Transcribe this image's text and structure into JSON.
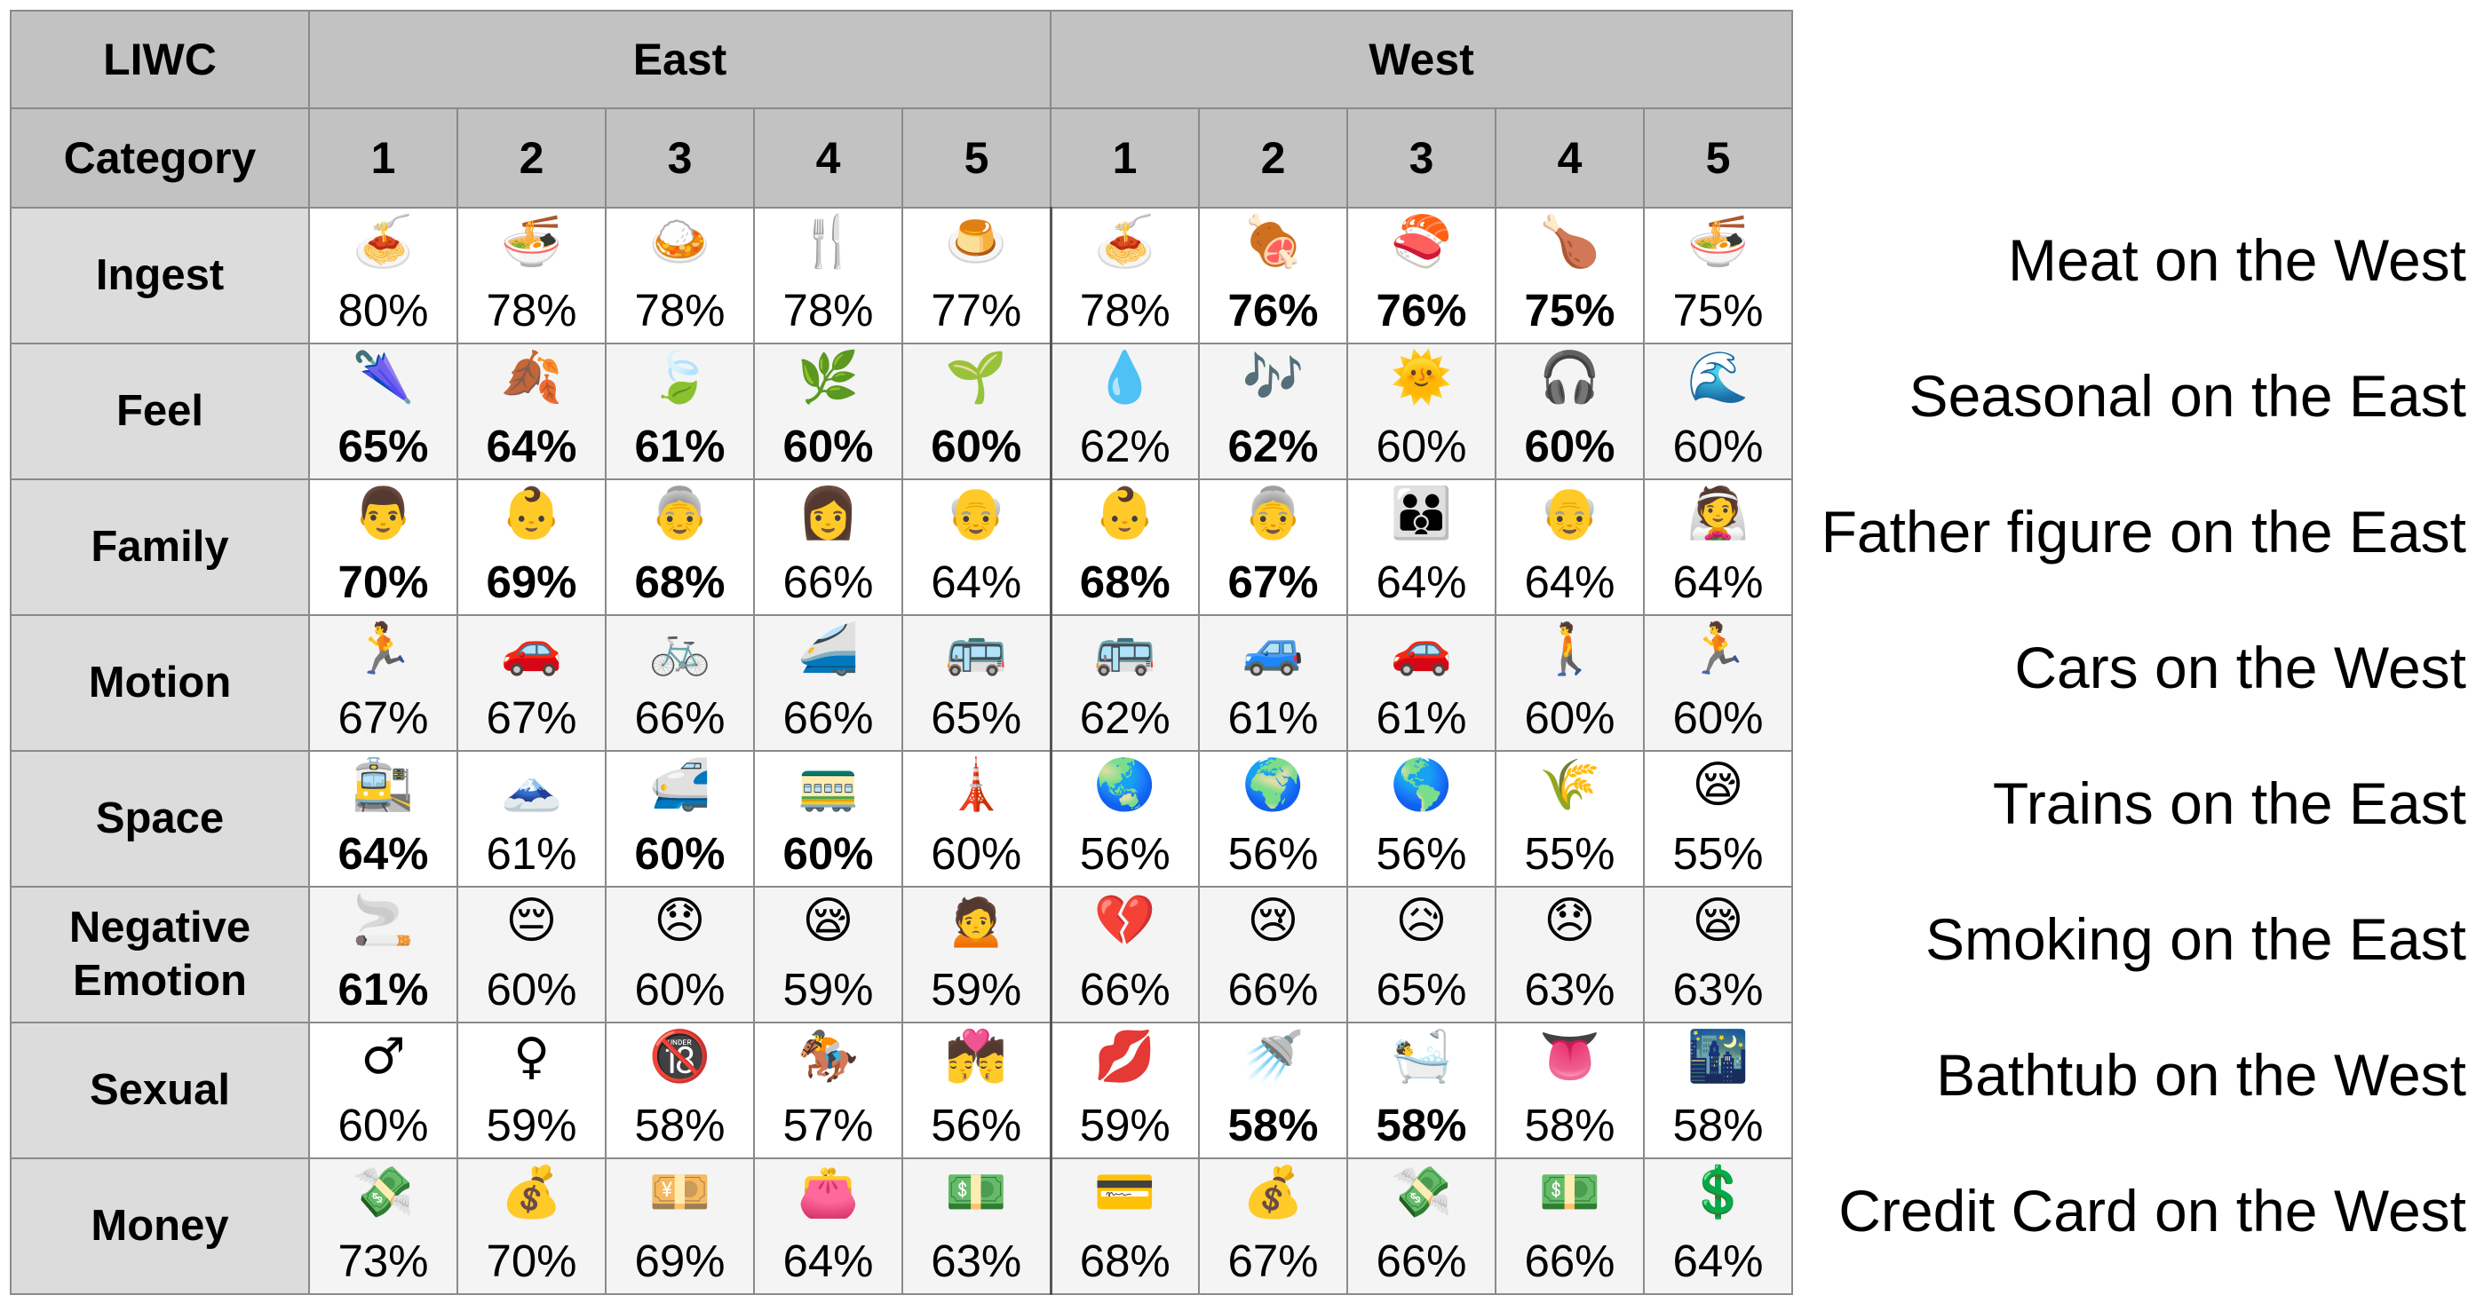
{
  "table": {
    "header_top": {
      "left": "LIWC",
      "groups": [
        "East",
        "West"
      ]
    },
    "header_sub": {
      "left": "Category",
      "ranks": [
        "1",
        "2",
        "3",
        "4",
        "5"
      ]
    }
  },
  "chart_data": {
    "type": "table",
    "groups": [
      "East",
      "West"
    ],
    "ranks": [
      "1",
      "2",
      "3",
      "4",
      "5"
    ],
    "rows": [
      {
        "category": "Ingest",
        "note": "Meat on the West",
        "cells": [
          {
            "emoji": "spaghetti",
            "glyph": "🍝",
            "value": "80%",
            "bold": false
          },
          {
            "emoji": "steaming-bowl",
            "glyph": "🍜",
            "value": "78%",
            "bold": false
          },
          {
            "emoji": "curry-rice",
            "glyph": "🍛",
            "value": "78%",
            "bold": false
          },
          {
            "emoji": "fork-and-knife",
            "glyph": "🍴",
            "value": "78%",
            "bold": false
          },
          {
            "emoji": "custard",
            "glyph": "🍮",
            "value": "77%",
            "bold": false
          },
          {
            "emoji": "spaghetti",
            "glyph": "🍝",
            "value": "78%",
            "bold": false
          },
          {
            "emoji": "meat-on-bone",
            "glyph": "🍖",
            "value": "76%",
            "bold": true
          },
          {
            "emoji": "sushi",
            "glyph": "🍣",
            "value": "76%",
            "bold": true
          },
          {
            "emoji": "poultry-leg",
            "glyph": "🍗",
            "value": "75%",
            "bold": true
          },
          {
            "emoji": "steaming-bowl",
            "glyph": "🍜",
            "value": "75%",
            "bold": false
          }
        ]
      },
      {
        "category": "Feel",
        "note": "Seasonal on the East",
        "cells": [
          {
            "emoji": "closed-umbrella",
            "glyph": "🌂",
            "value": "65%",
            "bold": true
          },
          {
            "emoji": "fallen-leaf",
            "glyph": "🍂",
            "value": "64%",
            "bold": true
          },
          {
            "emoji": "leaf-fluttering",
            "glyph": "🍃",
            "value": "61%",
            "bold": true
          },
          {
            "emoji": "herb",
            "glyph": "🌿",
            "value": "60%",
            "bold": true
          },
          {
            "emoji": "seedling",
            "glyph": "🌱",
            "value": "60%",
            "bold": true
          },
          {
            "emoji": "droplet",
            "glyph": "💧",
            "value": "62%",
            "bold": false
          },
          {
            "emoji": "musical-notes",
            "glyph": "🎶",
            "value": "62%",
            "bold": true
          },
          {
            "emoji": "sun-with-face",
            "glyph": "🌞",
            "value": "60%",
            "bold": false
          },
          {
            "emoji": "headphone",
            "glyph": "🎧",
            "value": "60%",
            "bold": true
          },
          {
            "emoji": "water-wave",
            "glyph": "🌊",
            "value": "60%",
            "bold": false
          }
        ]
      },
      {
        "category": "Family",
        "note": "Father figure on the East",
        "cells": [
          {
            "emoji": "man",
            "glyph": "👨",
            "value": "70%",
            "bold": true
          },
          {
            "emoji": "baby",
            "glyph": "👶",
            "value": "69%",
            "bold": true
          },
          {
            "emoji": "old-woman",
            "glyph": "👵",
            "value": "68%",
            "bold": true
          },
          {
            "emoji": "woman",
            "glyph": "👩",
            "value": "66%",
            "bold": false
          },
          {
            "emoji": "old-man",
            "glyph": "👴",
            "value": "64%",
            "bold": false
          },
          {
            "emoji": "baby",
            "glyph": "👶",
            "value": "68%",
            "bold": true
          },
          {
            "emoji": "old-woman",
            "glyph": "👵",
            "value": "67%",
            "bold": true
          },
          {
            "emoji": "family",
            "glyph": "👪",
            "value": "64%",
            "bold": false
          },
          {
            "emoji": "old-man",
            "glyph": "👴",
            "value": "64%",
            "bold": false
          },
          {
            "emoji": "bride-with-veil",
            "glyph": "👰",
            "value": "64%",
            "bold": false
          }
        ]
      },
      {
        "category": "Motion",
        "note": "Cars on the West",
        "cells": [
          {
            "emoji": "runner",
            "glyph": "🏃",
            "value": "67%",
            "bold": false
          },
          {
            "emoji": "red-car",
            "glyph": "🚗",
            "value": "67%",
            "bold": false
          },
          {
            "emoji": "bicycle",
            "glyph": "🚲",
            "value": "66%",
            "bold": false
          },
          {
            "emoji": "bullet-train",
            "glyph": "🚄",
            "value": "66%",
            "bold": false
          },
          {
            "emoji": "bus",
            "glyph": "🚌",
            "value": "65%",
            "bold": false
          },
          {
            "emoji": "bus",
            "glyph": "🚌",
            "value": "62%",
            "bold": false
          },
          {
            "emoji": "blue-car",
            "glyph": "🚙",
            "value": "61%",
            "bold": false
          },
          {
            "emoji": "red-car",
            "glyph": "🚗",
            "value": "61%",
            "bold": false
          },
          {
            "emoji": "pedestrian",
            "glyph": "🚶",
            "value": "60%",
            "bold": false
          },
          {
            "emoji": "runner",
            "glyph": "🏃",
            "value": "60%",
            "bold": false
          }
        ]
      },
      {
        "category": "Space",
        "note": "Trains on the East",
        "cells": [
          {
            "emoji": "station",
            "glyph": "🚉",
            "value": "64%",
            "bold": true
          },
          {
            "emoji": "mountain",
            "glyph": "🗻",
            "value": "61%",
            "bold": false
          },
          {
            "emoji": "bullet-train",
            "glyph": "🚅",
            "value": "60%",
            "bold": true
          },
          {
            "emoji": "tram",
            "glyph": "🚃",
            "value": "60%",
            "bold": true
          },
          {
            "emoji": "tokyo-tower",
            "glyph": "🗼",
            "value": "60%",
            "bold": false
          },
          {
            "emoji": "globe-asia",
            "glyph": "🌏",
            "value": "56%",
            "bold": false
          },
          {
            "emoji": "globe-europe",
            "glyph": "🌍",
            "value": "56%",
            "bold": false
          },
          {
            "emoji": "globe-americas",
            "glyph": "🌎",
            "value": "56%",
            "bold": false
          },
          {
            "emoji": "ear-of-rice",
            "glyph": "🌾",
            "value": "55%",
            "bold": false
          },
          {
            "emoji": "sleepy-face",
            "glyph": "😪",
            "value": "55%",
            "bold": false
          }
        ]
      },
      {
        "category": "Negative Emotion",
        "note": "Smoking on the East",
        "cells": [
          {
            "emoji": "smoking",
            "glyph": "🚬",
            "value": "61%",
            "bold": true
          },
          {
            "emoji": "pensive-face",
            "glyph": "😔",
            "value": "60%",
            "bold": false
          },
          {
            "emoji": "disappointed-face",
            "glyph": "😞",
            "value": "60%",
            "bold": false
          },
          {
            "emoji": "sleepy-face",
            "glyph": "😪",
            "value": "59%",
            "bold": false
          },
          {
            "emoji": "person-frowning",
            "glyph": "🙍",
            "value": "59%",
            "bold": false
          },
          {
            "emoji": "broken-heart",
            "glyph": "💔",
            "value": "66%",
            "bold": false
          },
          {
            "emoji": "crying-face",
            "glyph": "😢",
            "value": "66%",
            "bold": false
          },
          {
            "emoji": "sad-relieved-face",
            "glyph": "😥",
            "value": "65%",
            "bold": false
          },
          {
            "emoji": "disappointed-face",
            "glyph": "😞",
            "value": "63%",
            "bold": false
          },
          {
            "emoji": "sleepy-face",
            "glyph": "😪",
            "value": "63%",
            "bold": false
          }
        ]
      },
      {
        "category": "Sexual",
        "note": "Bathtub on the West",
        "cells": [
          {
            "emoji": "male-sign",
            "glyph": "♂",
            "value": "60%",
            "bold": false
          },
          {
            "emoji": "female-sign",
            "glyph": "♀",
            "value": "59%",
            "bold": false
          },
          {
            "emoji": "no-one-under-eighteen",
            "glyph": "🔞",
            "value": "58%",
            "bold": false
          },
          {
            "emoji": "horse-racing",
            "glyph": "🏇",
            "value": "57%",
            "bold": false
          },
          {
            "emoji": "kiss",
            "glyph": "💏",
            "value": "56%",
            "bold": false
          },
          {
            "emoji": "kiss-mark",
            "glyph": "💋",
            "value": "59%",
            "bold": false
          },
          {
            "emoji": "shower",
            "glyph": "🚿",
            "value": "58%",
            "bold": true
          },
          {
            "emoji": "bath",
            "glyph": "🛀",
            "value": "58%",
            "bold": true
          },
          {
            "emoji": "tongue",
            "glyph": "👅",
            "value": "58%",
            "bold": false
          },
          {
            "emoji": "night-with-stars",
            "glyph": "🌃",
            "value": "58%",
            "bold": false
          }
        ]
      },
      {
        "category": "Money",
        "note": "Credit Card on the West",
        "cells": [
          {
            "emoji": "money-with-wings",
            "glyph": "💸",
            "value": "73%",
            "bold": false
          },
          {
            "emoji": "money-bag",
            "glyph": "💰",
            "value": "70%",
            "bold": false
          },
          {
            "emoji": "yen-banknote",
            "glyph": "💴",
            "value": "69%",
            "bold": false
          },
          {
            "emoji": "purse",
            "glyph": "👛",
            "value": "64%",
            "bold": false
          },
          {
            "emoji": "dollar-banknote",
            "glyph": "💵",
            "value": "63%",
            "bold": false
          },
          {
            "emoji": "credit-card",
            "glyph": "💳",
            "value": "68%",
            "bold": false
          },
          {
            "emoji": "money-bag",
            "glyph": "💰",
            "value": "67%",
            "bold": false
          },
          {
            "emoji": "money-with-wings",
            "glyph": "💸",
            "value": "66%",
            "bold": false
          },
          {
            "emoji": "dollar-banknote",
            "glyph": "💵",
            "value": "66%",
            "bold": false
          },
          {
            "emoji": "heavy-dollar-sign",
            "glyph": "💲",
            "value": "64%",
            "bold": false
          }
        ]
      }
    ]
  }
}
